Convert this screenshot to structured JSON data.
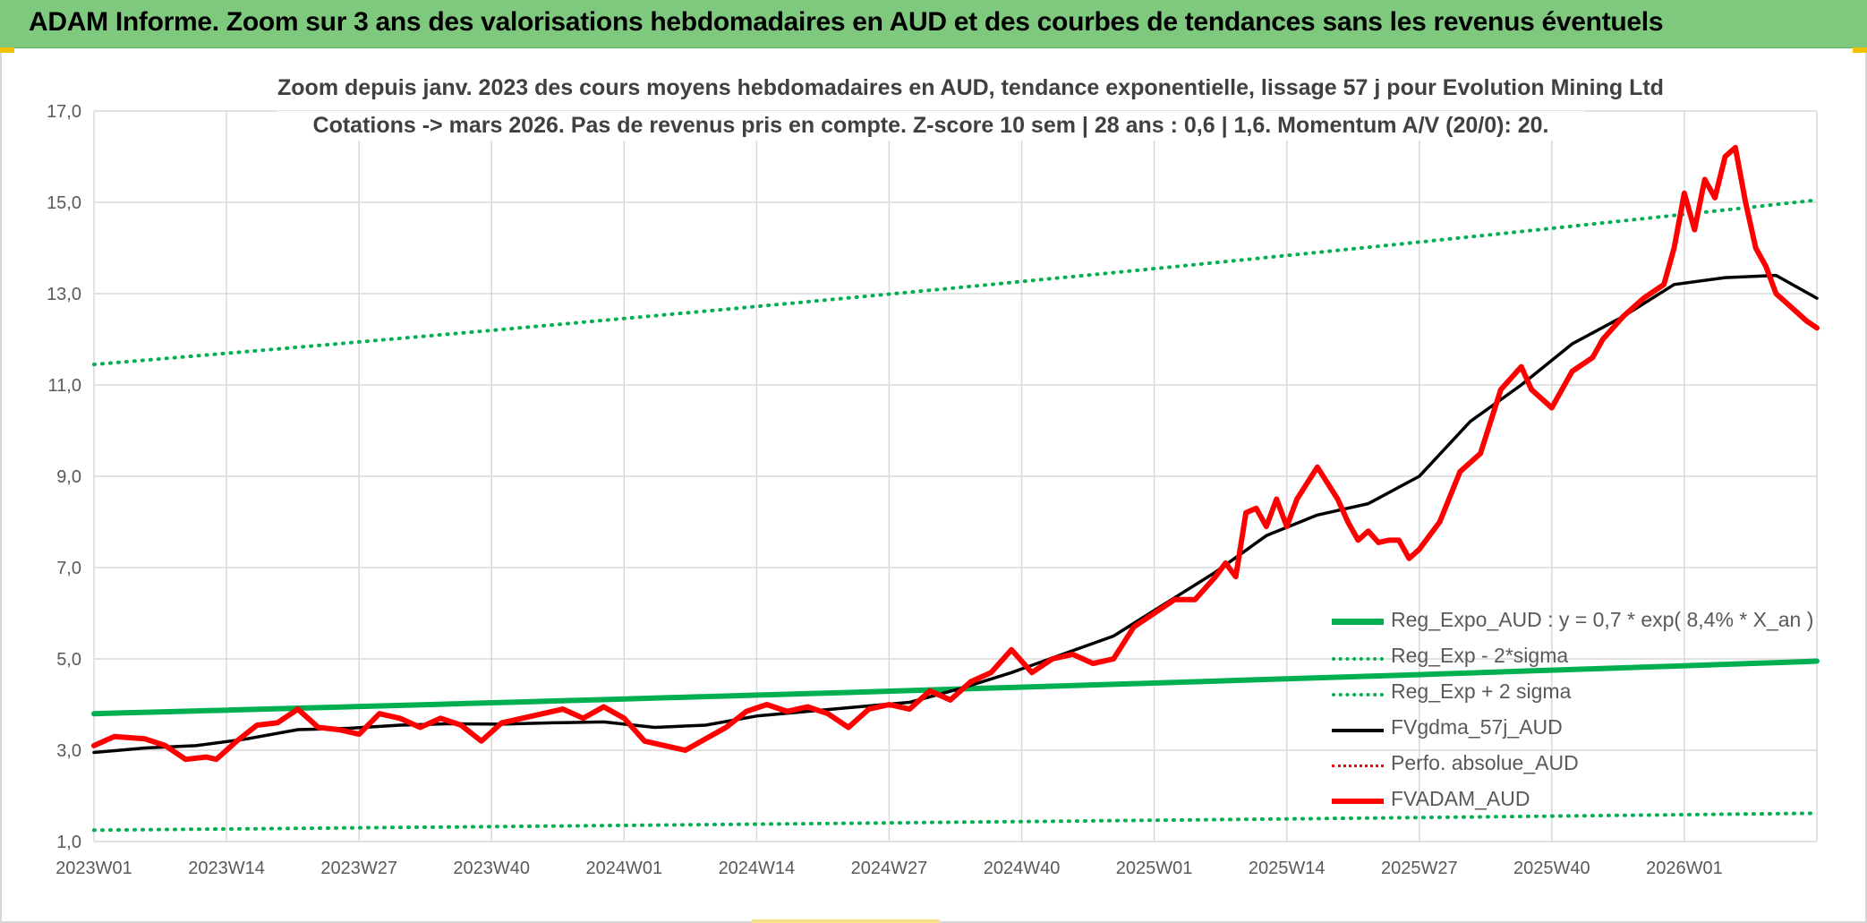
{
  "banner": {
    "title": "ADAM Informe. Zoom sur 3 ans des valorisations hebdomadaires en AUD et des courbes de tendances sans les revenus éventuels"
  },
  "chart_data": {
    "type": "line",
    "title_line1": "Zoom depuis janv. 2023 des cours moyens hebdomadaires en AUD, tendance exponentielle, lissage 57 j pour Evolution Mining Ltd",
    "title_line2": "Cotations -> mars 2026. Pas de revenus pris en compte. Z-score 10 sem | 28 ans : 0,6 | 1,6. Momentum A/V (20/0): 20.",
    "ylim": [
      1.0,
      17.0
    ],
    "yticks": [
      "1,0",
      "3,0",
      "5,0",
      "7,0",
      "9,0",
      "11,0",
      "13,0",
      "15,0",
      "17,0"
    ],
    "xticks": [
      "2023W01",
      "2023W14",
      "2023W27",
      "2023W40",
      "2024W01",
      "2024W14",
      "2024W27",
      "2024W40",
      "2025W01",
      "2025W14",
      "2025W27",
      "2025W40",
      "2026W01"
    ],
    "n_weeks": 170,
    "grid": true,
    "legend_position": "bottom-right",
    "series": [
      {
        "name": "Reg_Expo_AUD : y = 0,7 * exp( 8,4% *  X_an )",
        "style": "solid-thick",
        "color": "#00b050",
        "x": [
          0,
          169
        ],
        "y": [
          3.8,
          4.95
        ]
      },
      {
        "name": "Reg_Exp - 2*sigma",
        "style": "dotted",
        "color": "#00b050",
        "x": [
          0,
          169
        ],
        "y": [
          1.25,
          1.62
        ]
      },
      {
        "name": "Reg_Exp + 2 sigma",
        "style": "dotted",
        "color": "#00b050",
        "x": [
          0,
          169
        ],
        "y": [
          11.45,
          15.05
        ]
      },
      {
        "name": "FVgdma_57j_AUD",
        "style": "solid",
        "color": "#000000",
        "x": [
          0,
          5,
          10,
          15,
          20,
          25,
          30,
          35,
          40,
          45,
          50,
          55,
          60,
          65,
          70,
          75,
          80,
          85,
          90,
          95,
          100,
          105,
          110,
          115,
          120,
          125,
          130,
          135,
          140,
          145,
          150,
          155,
          160,
          165,
          169
        ],
        "y": [
          2.95,
          3.05,
          3.1,
          3.25,
          3.45,
          3.48,
          3.55,
          3.58,
          3.57,
          3.6,
          3.62,
          3.5,
          3.55,
          3.75,
          3.85,
          3.95,
          4.05,
          4.35,
          4.7,
          5.1,
          5.5,
          6.2,
          6.9,
          7.7,
          8.15,
          8.4,
          9.0,
          10.2,
          11.0,
          11.9,
          12.5,
          13.2,
          13.35,
          13.4,
          12.9
        ]
      },
      {
        "name": "Perfo. absolue_AUD",
        "style": "dotted",
        "color": "#ff0000",
        "x": [],
        "y": []
      },
      {
        "name": "FVADAM_AUD",
        "style": "solid-thick",
        "color": "#ff0000",
        "x": [
          0,
          2,
          5,
          7,
          9,
          11,
          12,
          14,
          16,
          18,
          20,
          22,
          24,
          26,
          28,
          30,
          32,
          34,
          36,
          38,
          40,
          42,
          44,
          46,
          48,
          50,
          52,
          54,
          56,
          58,
          60,
          62,
          64,
          66,
          68,
          70,
          72,
          74,
          76,
          78,
          80,
          82,
          84,
          86,
          88,
          90,
          92,
          94,
          96,
          98,
          100,
          102,
          104,
          106,
          108,
          110,
          111,
          112,
          113,
          114,
          115,
          116,
          117,
          118,
          120,
          122,
          123,
          124,
          125,
          126,
          127,
          128,
          129,
          130,
          132,
          134,
          136,
          138,
          140,
          141,
          143,
          145,
          147,
          148,
          150,
          152,
          154,
          155,
          156,
          157,
          158,
          159,
          160,
          161,
          162,
          163,
          164,
          165,
          166,
          167,
          168,
          169
        ],
        "y": [
          3.1,
          3.3,
          3.25,
          3.1,
          2.8,
          2.85,
          2.8,
          3.2,
          3.55,
          3.6,
          3.9,
          3.5,
          3.45,
          3.35,
          3.8,
          3.7,
          3.5,
          3.7,
          3.55,
          3.2,
          3.6,
          3.7,
          3.8,
          3.9,
          3.7,
          3.95,
          3.7,
          3.2,
          3.1,
          3.0,
          3.25,
          3.5,
          3.85,
          4.0,
          3.85,
          3.95,
          3.8,
          3.5,
          3.9,
          4.0,
          3.9,
          4.3,
          4.1,
          4.5,
          4.7,
          5.2,
          4.7,
          5.0,
          5.1,
          4.9,
          5.0,
          5.7,
          6.0,
          6.3,
          6.3,
          6.8,
          7.1,
          6.8,
          8.2,
          8.3,
          7.9,
          8.5,
          7.9,
          8.5,
          9.2,
          8.5,
          8.0,
          7.6,
          7.8,
          7.55,
          7.6,
          7.6,
          7.2,
          7.4,
          8.0,
          9.1,
          9.5,
          10.9,
          11.4,
          10.9,
          10.5,
          11.3,
          11.6,
          12.0,
          12.5,
          12.9,
          13.2,
          14.0,
          15.2,
          14.4,
          15.5,
          15.1,
          16.0,
          16.2,
          15.0,
          14.0,
          13.6,
          13.0,
          12.8,
          12.6,
          12.4,
          12.25
        ]
      }
    ]
  }
}
